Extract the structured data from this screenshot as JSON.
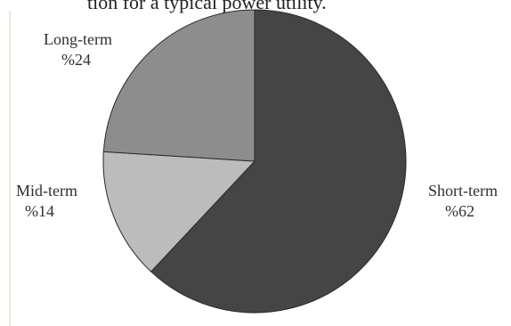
{
  "caption": {
    "text": "tion for a typical power utility."
  },
  "chart_data": {
    "type": "pie",
    "slices": [
      {
        "name": "Short-term",
        "value": 62,
        "label": "%62",
        "color": "#454545"
      },
      {
        "name": "Mid-term",
        "value": 14,
        "label": "%14",
        "color": "#bcbcbc"
      },
      {
        "name": "Long-term",
        "value": 24,
        "label": "%24",
        "color": "#8d8d8d"
      }
    ],
    "title": "",
    "legend": "none",
    "start_angle": "12 o'clock",
    "direction": "clockwise"
  }
}
